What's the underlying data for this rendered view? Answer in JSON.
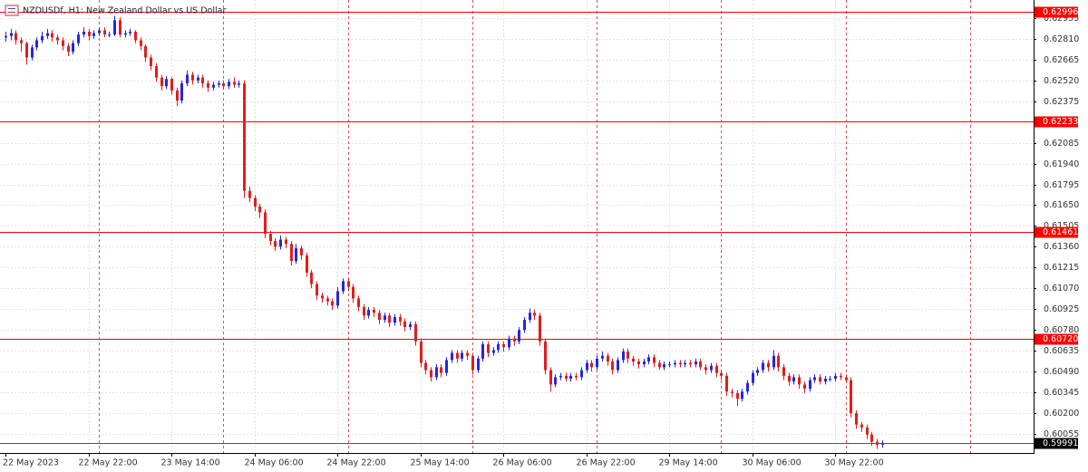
{
  "chart_data": {
    "type": "candlestick",
    "title": "NZDUSDf, H1:  New Zealand Dollar vs US Dollar",
    "up_color": "#2626e0",
    "down_color": "#e01e1e",
    "level_color": "#ff0000",
    "last_price_color": "#000000",
    "grid": true,
    "ylim": [
      0.59922,
      0.63081
    ],
    "yticks": [
      0.62955,
      {
        "value": 0.6281,
        "label": "0.62810"
      },
      0.62665,
      {
        "value": 0.6252,
        "label": "0.62520"
      },
      0.62375,
      0.62085,
      {
        "value": 0.6194,
        "label": "0.61940"
      },
      0.61795,
      {
        "value": 0.6165,
        "label": "0.61650"
      },
      0.61505,
      {
        "value": 0.6136,
        "label": "0.61360"
      },
      0.61215,
      {
        "value": 0.6107,
        "label": "0.61070"
      },
      0.60925,
      {
        "value": 0.6078,
        "label": "0.60780"
      },
      0.60635,
      {
        "value": 0.6049,
        "label": "0.60490"
      },
      0.60345,
      {
        "value": 0.602,
        "label": "0.60200"
      },
      0.60055
    ],
    "levels": [
      0.62996,
      0.62233,
      0.61461,
      {
        "value": 0.6072,
        "label": "0.60720"
      }
    ],
    "last_price": 0.59991,
    "categories": [
      "22 May 2023",
      null,
      null,
      null,
      null,
      null,
      null,
      null,
      null,
      null,
      null,
      null,
      null,
      null,
      null,
      null,
      "22 May 22:00",
      null,
      null,
      null,
      null,
      null,
      null,
      null,
      null,
      null,
      null,
      null,
      null,
      null,
      null,
      null,
      "23 May 14:00",
      null,
      null,
      null,
      null,
      null,
      null,
      null,
      null,
      null,
      null,
      null,
      null,
      null,
      null,
      null,
      "24 May 06:00",
      null,
      null,
      null,
      null,
      null,
      null,
      null,
      null,
      null,
      null,
      null,
      null,
      null,
      null,
      null,
      "24 May 22:00",
      null,
      null,
      null,
      null,
      null,
      null,
      null,
      null,
      null,
      null,
      null,
      null,
      null,
      null,
      null,
      "25 May 14:00",
      null,
      null,
      null,
      null,
      null,
      null,
      null,
      null,
      null,
      null,
      null,
      null,
      null,
      null,
      null,
      "26 May 06:00",
      null,
      null,
      null,
      null,
      null,
      null,
      null,
      null,
      null,
      null,
      null,
      null,
      null,
      null,
      null,
      "26 May 22:00",
      null,
      null,
      null,
      null,
      null,
      null,
      null,
      null,
      null,
      null,
      null,
      null,
      null,
      null,
      null,
      "29 May 14:00",
      null,
      null,
      null,
      null,
      null,
      null,
      null,
      null,
      null,
      null,
      null,
      null,
      null,
      null,
      null,
      "30 May 06:00",
      null,
      null,
      null,
      null,
      null,
      null,
      null,
      null,
      null,
      null,
      null,
      null,
      null,
      null,
      null,
      "30 May 22:00",
      null,
      null,
      null,
      null,
      null,
      null,
      null,
      null,
      null
    ],
    "ohlc": [
      [
        0.6282,
        0.6286,
        0.6279,
        0.6283
      ],
      [
        0.6283,
        0.6288,
        0.628,
        0.6285
      ],
      [
        0.6285,
        0.6287,
        0.6277,
        0.628
      ],
      [
        0.628,
        0.6282,
        0.6272,
        0.6278
      ],
      [
        0.6278,
        0.6279,
        0.6263,
        0.6268
      ],
      [
        0.6268,
        0.6277,
        0.6266,
        0.6275
      ],
      [
        0.6275,
        0.6282,
        0.6273,
        0.628
      ],
      [
        0.628,
        0.6286,
        0.6278,
        0.6283
      ],
      [
        0.6283,
        0.6288,
        0.6281,
        0.6285
      ],
      [
        0.6285,
        0.6287,
        0.6279,
        0.6282
      ],
      [
        0.6282,
        0.6284,
        0.6277,
        0.628
      ],
      [
        0.628,
        0.6282,
        0.6273,
        0.6276
      ],
      [
        0.6276,
        0.6278,
        0.6269,
        0.6272
      ],
      [
        0.6272,
        0.628,
        0.627,
        0.6278
      ],
      [
        0.6278,
        0.6286,
        0.6276,
        0.6284
      ],
      [
        0.6284,
        0.6289,
        0.6282,
        0.6286
      ],
      [
        0.6286,
        0.6288,
        0.628,
        0.6283
      ],
      [
        0.6283,
        0.6287,
        0.6281,
        0.6285
      ],
      [
        0.6285,
        0.6289,
        0.6283,
        0.6287
      ],
      [
        0.6287,
        0.6289,
        0.6282,
        0.6284
      ],
      [
        0.6284,
        0.6286,
        0.6282,
        0.6284
      ],
      [
        0.6284,
        0.6297,
        0.6283,
        0.6294
      ],
      [
        0.6294,
        0.6296,
        0.6282,
        0.6284
      ],
      [
        0.6284,
        0.6287,
        0.6282,
        0.6285
      ],
      [
        0.6285,
        0.6288,
        0.6283,
        0.6286
      ],
      [
        0.6286,
        0.6287,
        0.6278,
        0.628
      ],
      [
        0.628,
        0.6282,
        0.6273,
        0.6276
      ],
      [
        0.6276,
        0.6277,
        0.6265,
        0.6268
      ],
      [
        0.6268,
        0.627,
        0.6259,
        0.6262
      ],
      [
        0.6262,
        0.6264,
        0.6251,
        0.6254
      ],
      [
        0.6254,
        0.6256,
        0.6245,
        0.6248
      ],
      [
        0.6248,
        0.6255,
        0.6246,
        0.6253
      ],
      [
        0.6253,
        0.6254,
        0.6242,
        0.6245
      ],
      [
        0.6245,
        0.6247,
        0.6234,
        0.6238
      ],
      [
        0.6238,
        0.6252,
        0.6236,
        0.625
      ],
      [
        0.625,
        0.6259,
        0.6248,
        0.6256
      ],
      [
        0.6256,
        0.6258,
        0.6249,
        0.6252
      ],
      [
        0.6252,
        0.6256,
        0.625,
        0.6254
      ],
      [
        0.6254,
        0.6256,
        0.6247,
        0.625
      ],
      [
        0.625,
        0.6252,
        0.6244,
        0.6247
      ],
      [
        0.6247,
        0.6251,
        0.6245,
        0.6249
      ],
      [
        0.6249,
        0.6252,
        0.6247,
        0.625
      ],
      [
        0.625,
        0.6252,
        0.6246,
        0.6248
      ],
      [
        0.6248,
        0.6253,
        0.6246,
        0.6251
      ],
      [
        0.6251,
        0.6254,
        0.6247,
        0.6249
      ],
      [
        0.6249,
        0.6252,
        0.6247,
        0.625
      ],
      [
        0.625,
        0.6252,
        0.617,
        0.6175
      ],
      [
        0.6175,
        0.6178,
        0.6167,
        0.617
      ],
      [
        0.617,
        0.6172,
        0.6161,
        0.6164
      ],
      [
        0.6164,
        0.6166,
        0.6156,
        0.616
      ],
      [
        0.616,
        0.6162,
        0.6142,
        0.6145
      ],
      [
        0.6145,
        0.6147,
        0.6137,
        0.614
      ],
      [
        0.614,
        0.6142,
        0.6133,
        0.6136
      ],
      [
        0.6136,
        0.6144,
        0.6134,
        0.6141
      ],
      [
        0.6141,
        0.6143,
        0.6135,
        0.6138
      ],
      [
        0.6138,
        0.614,
        0.6123,
        0.6126
      ],
      [
        0.6126,
        0.6138,
        0.6124,
        0.6135
      ],
      [
        0.6135,
        0.6137,
        0.6127,
        0.613
      ],
      [
        0.613,
        0.6132,
        0.6115,
        0.6118
      ],
      [
        0.6118,
        0.612,
        0.6107,
        0.611
      ],
      [
        0.611,
        0.6112,
        0.6099,
        0.6102
      ],
      [
        0.6102,
        0.6104,
        0.6097,
        0.61
      ],
      [
        0.61,
        0.6102,
        0.6095,
        0.6098
      ],
      [
        0.6098,
        0.61,
        0.6092,
        0.6095
      ],
      [
        0.6095,
        0.6108,
        0.6093,
        0.6105
      ],
      [
        0.6105,
        0.6114,
        0.6103,
        0.6112
      ],
      [
        0.6112,
        0.6114,
        0.6105,
        0.6108
      ],
      [
        0.6108,
        0.611,
        0.6097,
        0.61
      ],
      [
        0.61,
        0.6102,
        0.6091,
        0.6094
      ],
      [
        0.6094,
        0.6096,
        0.6085,
        0.6088
      ],
      [
        0.6088,
        0.6094,
        0.6086,
        0.6092
      ],
      [
        0.6092,
        0.6094,
        0.6087,
        0.609
      ],
      [
        0.609,
        0.6092,
        0.6082,
        0.6085
      ],
      [
        0.6085,
        0.609,
        0.6083,
        0.6088
      ],
      [
        0.6088,
        0.609,
        0.608,
        0.6083
      ],
      [
        0.6083,
        0.6089,
        0.6081,
        0.6087
      ],
      [
        0.6087,
        0.6089,
        0.6081,
        0.6084
      ],
      [
        0.6084,
        0.6086,
        0.6077,
        0.608
      ],
      [
        0.608,
        0.6084,
        0.6078,
        0.6082
      ],
      [
        0.6082,
        0.6084,
        0.6067,
        0.607
      ],
      [
        0.607,
        0.6072,
        0.6052,
        0.6055
      ],
      [
        0.6055,
        0.6057,
        0.6047,
        0.605
      ],
      [
        0.605,
        0.6052,
        0.6042,
        0.6045
      ],
      [
        0.6045,
        0.6054,
        0.6043,
        0.6052
      ],
      [
        0.6052,
        0.6054,
        0.6045,
        0.6048
      ],
      [
        0.6048,
        0.6059,
        0.6046,
        0.6057
      ],
      [
        0.6057,
        0.6064,
        0.6055,
        0.6062
      ],
      [
        0.6062,
        0.6064,
        0.6055,
        0.6058
      ],
      [
        0.6058,
        0.6064,
        0.6056,
        0.6062
      ],
      [
        0.6062,
        0.6064,
        0.6057,
        0.606
      ],
      [
        0.606,
        0.6062,
        0.6047,
        0.605
      ],
      [
        0.605,
        0.606,
        0.6048,
        0.6058
      ],
      [
        0.6058,
        0.607,
        0.6056,
        0.6068
      ],
      [
        0.6068,
        0.607,
        0.6059,
        0.6062
      ],
      [
        0.6062,
        0.6066,
        0.606,
        0.6064
      ],
      [
        0.6064,
        0.607,
        0.6062,
        0.6068
      ],
      [
        0.6068,
        0.607,
        0.6063,
        0.6066
      ],
      [
        0.6066,
        0.6074,
        0.6064,
        0.6072
      ],
      [
        0.6072,
        0.6074,
        0.6067,
        0.607
      ],
      [
        0.607,
        0.608,
        0.6068,
        0.6078
      ],
      [
        0.6078,
        0.6087,
        0.6076,
        0.6085
      ],
      [
        0.6085,
        0.6093,
        0.6083,
        0.609
      ],
      [
        0.609,
        0.6092,
        0.6085,
        0.6088
      ],
      [
        0.6088,
        0.609,
        0.6067,
        0.607
      ],
      [
        0.607,
        0.6072,
        0.6047,
        0.605
      ],
      [
        0.605,
        0.6052,
        0.6035,
        0.604
      ],
      [
        0.604,
        0.6047,
        0.6038,
        0.6045
      ],
      [
        0.6045,
        0.6048,
        0.6043,
        0.6046
      ],
      [
        0.6046,
        0.6048,
        0.6042,
        0.6044
      ],
      [
        0.6044,
        0.6048,
        0.6042,
        0.6046
      ],
      [
        0.6046,
        0.6048,
        0.6043,
        0.6045
      ],
      [
        0.6045,
        0.6052,
        0.6043,
        0.605
      ],
      [
        0.605,
        0.6057,
        0.6048,
        0.6055
      ],
      [
        0.6055,
        0.6057,
        0.6049,
        0.6052
      ],
      [
        0.6052,
        0.606,
        0.605,
        0.6058
      ],
      [
        0.6058,
        0.6063,
        0.6056,
        0.606
      ],
      [
        0.606,
        0.6062,
        0.6053,
        0.6056
      ],
      [
        0.6056,
        0.6058,
        0.6047,
        0.605
      ],
      [
        0.605,
        0.6059,
        0.6048,
        0.6057
      ],
      [
        0.6057,
        0.6065,
        0.6055,
        0.6063
      ],
      [
        0.6063,
        0.6065,
        0.6055,
        0.6058
      ],
      [
        0.6058,
        0.606,
        0.6053,
        0.6056
      ],
      [
        0.6056,
        0.6058,
        0.6051,
        0.6054
      ],
      [
        0.6054,
        0.6058,
        0.6052,
        0.6056
      ],
      [
        0.6056,
        0.6061,
        0.6054,
        0.6059
      ],
      [
        0.6059,
        0.6061,
        0.6052,
        0.6055
      ],
      [
        0.6055,
        0.6057,
        0.605,
        0.6052
      ],
      [
        0.6052,
        0.6056,
        0.605,
        0.6054
      ],
      [
        0.6054,
        0.6056,
        0.6052,
        0.6054
      ],
      [
        0.6054,
        0.6057,
        0.6052,
        0.6055
      ],
      [
        0.6055,
        0.6057,
        0.6052,
        0.6054
      ],
      [
        0.6054,
        0.6057,
        0.6052,
        0.6055
      ],
      [
        0.6055,
        0.6057,
        0.6052,
        0.6054
      ],
      [
        0.6054,
        0.6058,
        0.6052,
        0.6056
      ],
      [
        0.6056,
        0.6058,
        0.605,
        0.6052
      ],
      [
        0.6052,
        0.6054,
        0.6047,
        0.605
      ],
      [
        0.605,
        0.6055,
        0.6048,
        0.6053
      ],
      [
        0.6053,
        0.6055,
        0.6045,
        0.6048
      ],
      [
        0.6048,
        0.605,
        0.6043,
        0.6046
      ],
      [
        0.6046,
        0.6048,
        0.6032,
        0.6035
      ],
      [
        0.6035,
        0.6037,
        0.6031,
        0.6034
      ],
      [
        0.6034,
        0.6036,
        0.6025,
        0.603
      ],
      [
        0.603,
        0.6037,
        0.6028,
        0.6035
      ],
      [
        0.6035,
        0.6043,
        0.6033,
        0.6041
      ],
      [
        0.6041,
        0.605,
        0.6039,
        0.6048
      ],
      [
        0.6048,
        0.6052,
        0.6046,
        0.605
      ],
      [
        0.605,
        0.6057,
        0.6048,
        0.6055
      ],
      [
        0.6055,
        0.6057,
        0.6049,
        0.6052
      ],
      [
        0.6052,
        0.6064,
        0.605,
        0.606
      ],
      [
        0.606,
        0.6062,
        0.6049,
        0.6052
      ],
      [
        0.6052,
        0.6054,
        0.6043,
        0.6046
      ],
      [
        0.6046,
        0.6048,
        0.6039,
        0.6042
      ],
      [
        0.6042,
        0.6047,
        0.604,
        0.6045
      ],
      [
        0.6045,
        0.6047,
        0.6037,
        0.604
      ],
      [
        0.604,
        0.6042,
        0.6034,
        0.6037
      ],
      [
        0.6037,
        0.6045,
        0.6035,
        0.6043
      ],
      [
        0.6043,
        0.6047,
        0.6041,
        0.6045
      ],
      [
        0.6045,
        0.6047,
        0.604,
        0.6042
      ],
      [
        0.6042,
        0.6046,
        0.604,
        0.6044
      ],
      [
        0.6044,
        0.6046,
        0.6042,
        0.6044
      ],
      [
        0.6044,
        0.6048,
        0.6042,
        0.6046
      ],
      [
        0.6046,
        0.6048,
        0.6043,
        0.6045
      ],
      [
        0.6045,
        0.6047,
        0.6041,
        0.6043
      ],
      [
        0.6043,
        0.6045,
        0.6017,
        0.602
      ],
      [
        0.602,
        0.6022,
        0.6009,
        0.6012
      ],
      [
        0.6012,
        0.6014,
        0.6007,
        0.601
      ],
      [
        0.601,
        0.6012,
        0.6002,
        0.6005
      ],
      [
        0.6005,
        0.6007,
        0.5997,
        0.6
      ],
      [
        0.6,
        0.6002,
        0.5995,
        0.5998
      ],
      [
        0.5998,
        0.6001,
        0.5996,
        0.5999
      ]
    ]
  }
}
